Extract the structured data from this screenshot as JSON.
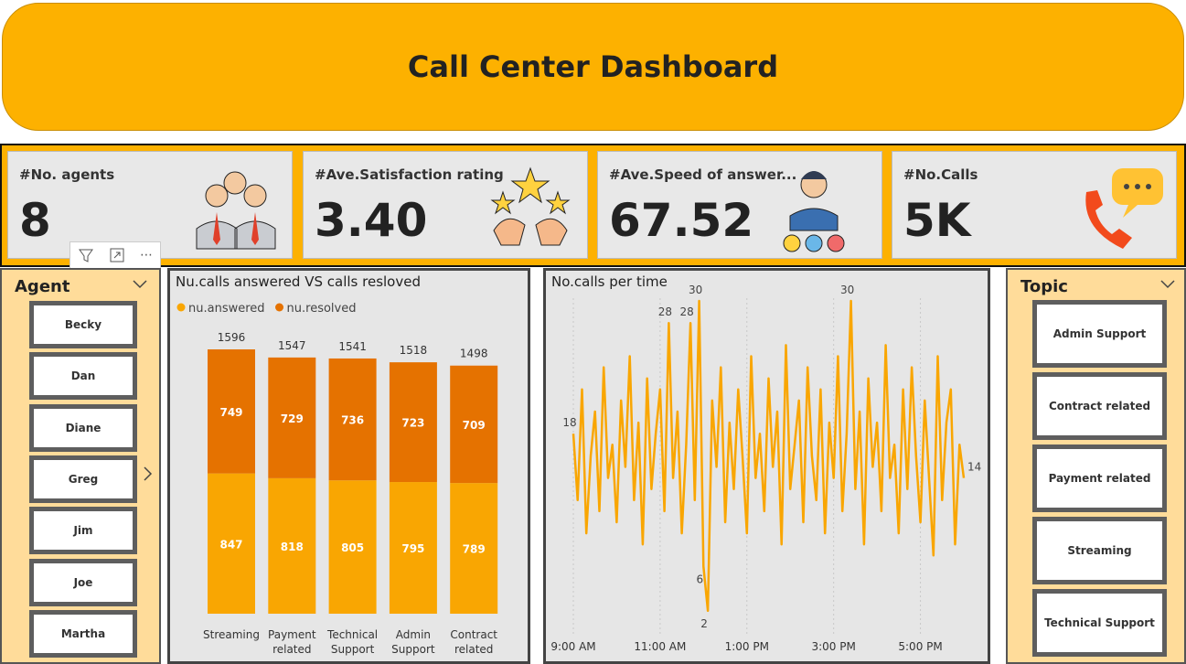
{
  "header": {
    "title": "Call Center Dashboard"
  },
  "kpis": [
    {
      "label": "#No. agents",
      "value": "8"
    },
    {
      "label": "#Ave.Satisfaction rating",
      "value": "3.40"
    },
    {
      "label": "#Ave.Speed of answer...",
      "value": "67.52"
    },
    {
      "label": "#No.Calls",
      "value": "5K"
    }
  ],
  "agent_slicer": {
    "title": "Agent",
    "items": [
      "Becky",
      "Dan",
      "Diane",
      "Greg",
      "Jim",
      "Joe",
      "Martha"
    ]
  },
  "topic_slicer": {
    "title": "Topic",
    "items": [
      "Admin Support",
      "Contract related",
      "Payment related",
      "Streaming",
      "Technical Support"
    ]
  },
  "chart_data": [
    {
      "type": "stacked-bar",
      "title": "Nu.calls answered VS calls resloved",
      "categories": [
        "Streaming",
        "Payment related",
        "Technical Support",
        "Admin Support",
        "Contract related"
      ],
      "series": [
        {
          "name": "nu.answered",
          "color": "#f9a602",
          "values": [
            847,
            818,
            805,
            795,
            789
          ]
        },
        {
          "name": "nu.resolved",
          "color": "#e57200",
          "values": [
            749,
            729,
            736,
            723,
            709
          ]
        }
      ],
      "totals": [
        1596,
        1547,
        1541,
        1518,
        1498
      ]
    },
    {
      "type": "line",
      "title": "No.calls per time",
      "color": "#f9a602",
      "grid": true,
      "xlim": [
        540,
        1080
      ],
      "xticks": [
        {
          "value": 540,
          "label": "9:00 AM"
        },
        {
          "value": 660,
          "label": "11:00 AM"
        },
        {
          "value": 780,
          "label": "1:00 PM"
        },
        {
          "value": 900,
          "label": "3:00 PM"
        },
        {
          "value": 1020,
          "label": "5:00 PM"
        }
      ],
      "x": [
        540,
        546,
        552,
        558,
        564,
        570,
        576,
        582,
        588,
        594,
        600,
        606,
        612,
        618,
        624,
        630,
        636,
        642,
        648,
        654,
        660,
        666,
        672,
        678,
        684,
        690,
        696,
        702,
        708,
        714,
        720,
        726,
        732,
        738,
        744,
        750,
        756,
        762,
        768,
        774,
        780,
        786,
        792,
        798,
        804,
        810,
        816,
        822,
        828,
        834,
        840,
        846,
        852,
        858,
        864,
        870,
        876,
        882,
        888,
        894,
        900,
        906,
        912,
        918,
        924,
        930,
        936,
        942,
        948,
        954,
        960,
        966,
        972,
        978,
        984,
        990,
        996,
        1002,
        1008,
        1014,
        1020,
        1026,
        1032,
        1038,
        1044,
        1050,
        1056,
        1062,
        1068,
        1074,
        1080
      ],
      "values": [
        18,
        12,
        22,
        9,
        16,
        20,
        11,
        24,
        14,
        17,
        10,
        21,
        15,
        25,
        12,
        19,
        8,
        23,
        13,
        18,
        22,
        11,
        28,
        14,
        20,
        9,
        17,
        28,
        12,
        30,
        6,
        2,
        21,
        15,
        24,
        10,
        19,
        13,
        22,
        16,
        9,
        25,
        14,
        18,
        11,
        23,
        15,
        20,
        8,
        26,
        13,
        17,
        21,
        10,
        24,
        16,
        12,
        22,
        9,
        19,
        14,
        25,
        11,
        18,
        30,
        13,
        20,
        8,
        23,
        15,
        19,
        11,
        26,
        14,
        17,
        9,
        22,
        13,
        24,
        16,
        10,
        21,
        14,
        7,
        25,
        12,
        19,
        22,
        8,
        17,
        14
      ]
    }
  ]
}
